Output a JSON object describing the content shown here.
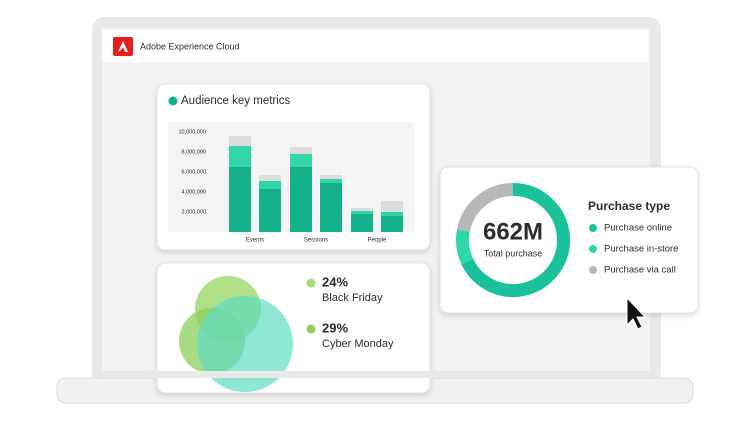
{
  "app": {
    "title": "Adobe Experience Cloud"
  },
  "metrics_card": {
    "title": "Audience key metrics",
    "type": "stacked-grouped-bar",
    "ylim": [
      0,
      10500000
    ],
    "yticks": [
      {
        "value": 2000000,
        "label": "2,000,000"
      },
      {
        "value": 4000000,
        "label": "4,000,000"
      },
      {
        "value": 6000000,
        "label": "6,000,000"
      },
      {
        "value": 8000000,
        "label": "8,000,000"
      },
      {
        "value": 10000000,
        "label": "10,000,000"
      }
    ],
    "colors": [
      "#14b08c",
      "#2fd6a8",
      "#dcdcdc"
    ],
    "groups": [
      {
        "label": "Events",
        "bars": [
          [
            6500000,
            2100000,
            1000000
          ],
          [
            4300000,
            800000,
            600000
          ]
        ]
      },
      {
        "label": "Sessions",
        "bars": [
          [
            6500000,
            1300000,
            700000
          ],
          [
            4900000,
            400000,
            400000
          ]
        ]
      },
      {
        "label": "People",
        "bars": [
          [
            1800000,
            300000,
            300000
          ],
          [
            1600000,
            400000,
            1100000
          ]
        ]
      }
    ]
  },
  "events_card": {
    "items": [
      {
        "percent": "24%",
        "label": "Black Friday",
        "color": "#a6dc7a"
      },
      {
        "percent": "29%",
        "label": "Cyber Monday",
        "color": "#8ccf5c"
      }
    ]
  },
  "purchase_card": {
    "type": "donut",
    "total": "662M",
    "total_label": "Total purchase",
    "title": "Purchase type",
    "segments": [
      {
        "label": "Purchase online",
        "color": "#19c29b",
        "value": 68
      },
      {
        "label": "Purchase in-store",
        "color": "#2fd6a8",
        "value": 10
      },
      {
        "label": "Purchase via call",
        "color": "#b8b8b8",
        "value": 22
      }
    ]
  }
}
